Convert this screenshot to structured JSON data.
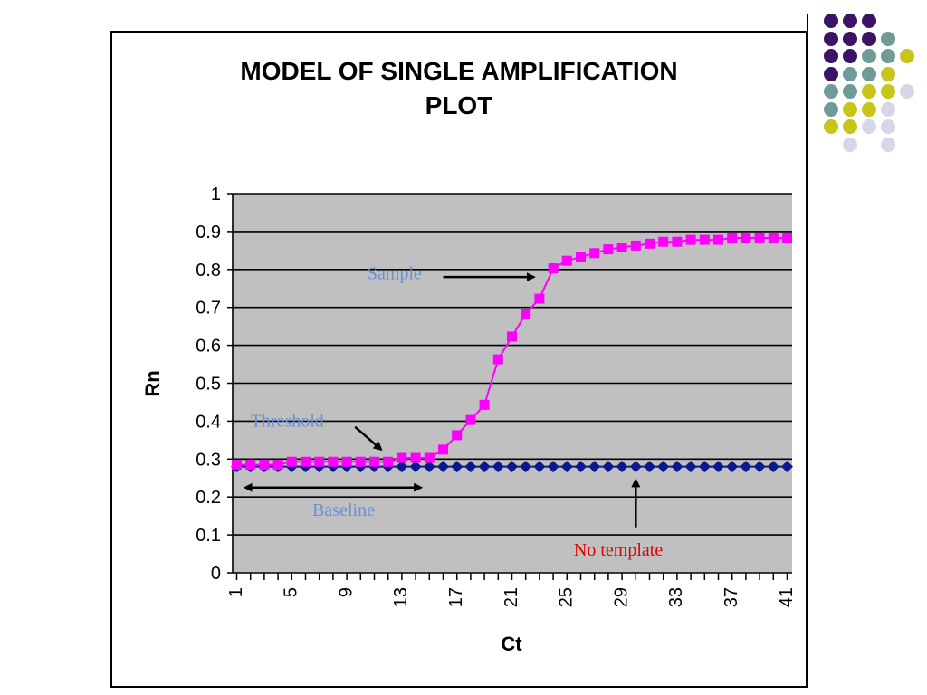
{
  "decor": {
    "dots": [
      [
        "#3b1466",
        "#3b1466",
        "#3b1466",
        null,
        null
      ],
      [
        "#3b1466",
        "#3b1466",
        "#3b1466",
        "#6f9a98",
        null
      ],
      [
        "#3b1466",
        "#3b1466",
        "#6f9a98",
        "#6f9a98",
        "#c7c41a"
      ],
      [
        "#3b1466",
        "#6f9a98",
        "#6f9a98",
        "#c7c41a",
        null
      ],
      [
        "#6f9a98",
        "#6f9a98",
        "#c7c41a",
        "#c7c41a",
        "#d6d6e8"
      ],
      [
        "#6f9a98",
        "#c7c41a",
        "#c7c41a",
        "#d6d6e8",
        null
      ],
      [
        "#c7c41a",
        "#c7c41a",
        "#d6d6e8",
        "#d6d6e8",
        null
      ],
      [
        null,
        "#d6d6e8",
        null,
        "#d6d6e8",
        null
      ]
    ]
  },
  "chart_data": {
    "type": "line",
    "title_line1": "MODEL OF SINGLE AMPLIFICATION",
    "title_line2": "PLOT",
    "xlabel": "Ct",
    "ylabel": "Rn",
    "xlim": [
      1,
      41
    ],
    "ylim": [
      0,
      1
    ],
    "yticks": [
      "0",
      "0.1",
      "0.2",
      "0.3",
      "0.4",
      "0.5",
      "0.6",
      "0.7",
      "0.8",
      "0.9",
      "1"
    ],
    "xticks": [
      "1",
      "5",
      "9",
      "13",
      "17",
      "21",
      "25",
      "29",
      "33",
      "37",
      "41"
    ],
    "grid": true,
    "background": "#c0c0c0",
    "series": [
      {
        "marker": "square",
        "color": "#ff00ff",
        "line_color": "#ff00ff",
        "x": [
          1,
          2,
          3,
          4,
          5,
          6,
          7,
          8,
          9,
          10,
          11,
          12,
          13,
          14,
          15,
          16,
          17,
          18,
          19,
          20,
          21,
          22,
          23,
          24,
          25,
          26,
          27,
          28,
          29,
          30,
          31,
          32,
          33,
          34,
          35,
          36,
          37,
          38,
          39,
          40,
          41
        ],
        "values": [
          0.285,
          0.285,
          0.285,
          0.285,
          0.293,
          0.293,
          0.293,
          0.293,
          0.293,
          0.293,
          0.293,
          0.293,
          0.303,
          0.303,
          0.303,
          0.325,
          0.363,
          0.403,
          0.443,
          0.563,
          0.623,
          0.683,
          0.723,
          0.803,
          0.823,
          0.833,
          0.843,
          0.853,
          0.858,
          0.863,
          0.868,
          0.873,
          0.873,
          0.878,
          0.878,
          0.878,
          0.883,
          0.883,
          0.883,
          0.883,
          0.883
        ]
      },
      {
        "marker": "diamond",
        "color": "#0a1a8c",
        "line_color": "#0a1a8c",
        "x": [
          1,
          2,
          3,
          4,
          5,
          6,
          7,
          8,
          9,
          10,
          11,
          12,
          13,
          14,
          15,
          16,
          17,
          18,
          19,
          20,
          21,
          22,
          23,
          24,
          25,
          26,
          27,
          28,
          29,
          30,
          31,
          32,
          33,
          34,
          35,
          36,
          37,
          38,
          39,
          40,
          41
        ],
        "values": [
          0.28,
          0.28,
          0.28,
          0.28,
          0.28,
          0.28,
          0.28,
          0.28,
          0.28,
          0.28,
          0.28,
          0.28,
          0.28,
          0.28,
          0.28,
          0.28,
          0.28,
          0.28,
          0.28,
          0.28,
          0.28,
          0.28,
          0.28,
          0.28,
          0.28,
          0.28,
          0.28,
          0.28,
          0.28,
          0.28,
          0.28,
          0.28,
          0.28,
          0.28,
          0.28,
          0.28,
          0.28,
          0.28,
          0.28,
          0.28,
          0.28
        ]
      }
    ],
    "annotations": [
      {
        "text": "Sample",
        "color": "#6a8fd8",
        "x": 10.5,
        "y": 0.775
      },
      {
        "text": "Threshold",
        "color": "#6a8fd8",
        "x": 2.0,
        "y": 0.385
      },
      {
        "text": "Baseline",
        "color": "#6a8fd8",
        "x": 6.5,
        "y": 0.15
      },
      {
        "text": "No template",
        "color": "#e00000",
        "x": 25.5,
        "y": 0.045
      }
    ],
    "arrows": [
      {
        "from": [
          16.0,
          0.78
        ],
        "to": [
          22.6,
          0.78
        ],
        "heads": "end"
      },
      {
        "from": [
          9.6,
          0.385
        ],
        "to": [
          11.5,
          0.325
        ],
        "heads": "end"
      },
      {
        "from": [
          2.0,
          0.225
        ],
        "to": [
          14.4,
          0.225
        ],
        "heads": "both"
      },
      {
        "from": [
          30.0,
          0.12
        ],
        "to": [
          30.0,
          0.245
        ],
        "heads": "end"
      }
    ]
  }
}
